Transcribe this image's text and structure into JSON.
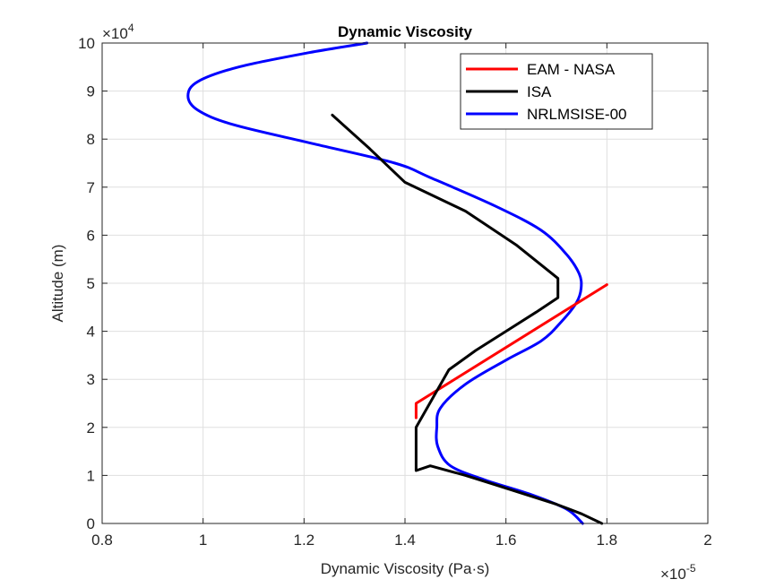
{
  "chart_data": {
    "type": "line",
    "title": "Dynamic Viscosity",
    "xlabel": "Dynamic Viscosity (Pa·s)",
    "ylabel": "Altitude (m)",
    "xlim": [
      0.8,
      2.0
    ],
    "ylim": [
      0,
      10
    ],
    "x_multiplier": "×10",
    "x_exponent": "-5",
    "y_multiplier": "×10",
    "y_exponent": "4",
    "x_ticks": [
      "0.8",
      "1",
      "1.2",
      "1.4",
      "1.6",
      "1.8",
      "2"
    ],
    "y_ticks": [
      "0",
      "1",
      "2",
      "3",
      "4",
      "5",
      "6",
      "7",
      "8",
      "9",
      "10"
    ],
    "grid": true,
    "legend_position": "top-right",
    "series": [
      {
        "name": "EAM - NASA",
        "color": "#ff0000",
        "x": [
          1.8,
          1.422,
          1.422
        ],
        "y": [
          4.97,
          2.5,
          2.2
        ]
      },
      {
        "name": "ISA",
        "color": "#000000",
        "x": [
          1.79,
          1.75,
          1.7,
          1.64,
          1.58,
          1.52,
          1.45,
          1.422,
          1.422,
          1.422,
          1.487,
          1.54,
          1.6,
          1.66,
          1.703,
          1.703,
          1.62,
          1.52,
          1.4,
          1.33,
          1.256
        ],
        "y": [
          0,
          0.2,
          0.4,
          0.6,
          0.8,
          1.0,
          1.2,
          1.1,
          1.5,
          2.0,
          3.2,
          3.6,
          4.0,
          4.4,
          4.7,
          5.1,
          5.8,
          6.5,
          7.1,
          7.8,
          8.5
        ]
      },
      {
        "name": "NRLMSISE-00",
        "color": "#0000ff",
        "x": [
          1.752,
          1.72,
          1.65,
          1.56,
          1.49,
          1.465,
          1.463,
          1.47,
          1.52,
          1.6,
          1.67,
          1.71,
          1.74,
          1.749,
          1.745,
          1.72,
          1.67,
          1.58,
          1.45,
          1.38,
          1.22,
          1.06,
          0.99,
          0.97,
          0.99,
          1.07,
          1.21,
          1.325
        ],
        "y": [
          0,
          0.3,
          0.6,
          0.9,
          1.2,
          1.6,
          2.0,
          2.4,
          2.9,
          3.4,
          3.8,
          4.2,
          4.6,
          4.9,
          5.2,
          5.6,
          6.1,
          6.6,
          7.2,
          7.5,
          7.9,
          8.3,
          8.6,
          8.9,
          9.2,
          9.5,
          9.8,
          10.0
        ]
      }
    ]
  }
}
